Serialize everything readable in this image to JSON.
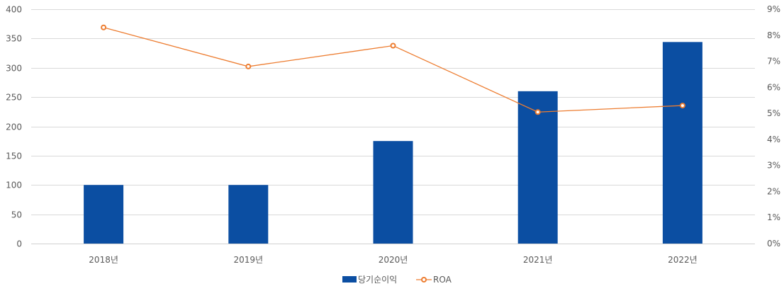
{
  "chart_data": {
    "type": "bar",
    "categories": [
      "2018년",
      "2019년",
      "2020년",
      "2021년",
      "2022년"
    ],
    "series": [
      {
        "name": "당기순이익",
        "type": "bar",
        "axis": "left",
        "color": "#0b4ea2",
        "values": [
          100,
          100,
          175,
          260,
          344
        ]
      },
      {
        "name": "ROA",
        "type": "line",
        "axis": "right",
        "color": "#ed7d31",
        "values": [
          0.083,
          0.068,
          0.076,
          0.0505,
          0.053
        ]
      }
    ],
    "y_left": {
      "min": 0,
      "max": 400,
      "ticks": [
        "0",
        "50",
        "100",
        "150",
        "200",
        "250",
        "300",
        "350",
        "400"
      ]
    },
    "y_right": {
      "min": 0,
      "max": 0.09,
      "ticks": [
        "0%",
        "1%",
        "2%",
        "3%",
        "4%",
        "5%",
        "6%",
        "7%",
        "8%",
        "9%"
      ]
    },
    "grid": true,
    "legend": "bottom"
  }
}
